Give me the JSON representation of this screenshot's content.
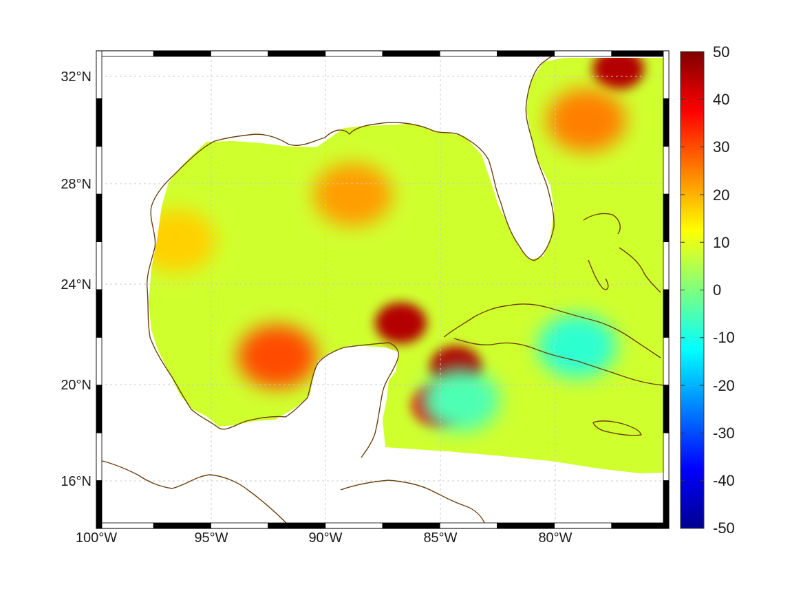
{
  "map": {
    "x_ticks": [
      "100°W",
      "95°W",
      "90°W",
      "85°W",
      "80°W"
    ],
    "y_ticks": [
      "32°N",
      "28°N",
      "24°N",
      "20°N",
      "16°N"
    ],
    "lon_range": [
      -100,
      -75
    ],
    "lat_range": [
      14.3,
      32.9
    ],
    "grid": true,
    "region_frame": "black-white alternating border",
    "colors": {
      "coastline": "#6b3f0e",
      "land": "#ffffff"
    }
  },
  "colorbar": {
    "ticks": [
      "50",
      "40",
      "30",
      "20",
      "10",
      "0",
      "-10",
      "-20",
      "-30",
      "-40",
      "-50"
    ],
    "range": [
      -50,
      50
    ],
    "colormap": "jet",
    "placement": "right"
  },
  "chart_data": {
    "type": "heatmap",
    "colormap": "jet",
    "vmin": -50,
    "vmax": 50,
    "features": [
      {
        "lon": -88.8,
        "lat": 27.3,
        "value": 22
      },
      {
        "lon": -96.5,
        "lat": 25.5,
        "value": 17
      },
      {
        "lon": -92.1,
        "lat": 21.0,
        "value": 30
      },
      {
        "lon": -86.7,
        "lat": 22.3,
        "value": 45
      },
      {
        "lon": -84.3,
        "lat": 20.6,
        "value": 45
      },
      {
        "lon": -85.1,
        "lat": 19.1,
        "value": 38
      },
      {
        "lon": -77.2,
        "lat": 32.2,
        "value": 45
      },
      {
        "lon": -78.6,
        "lat": 30.2,
        "value": 25
      },
      {
        "lon": -84.1,
        "lat": 19.3,
        "value": -5
      },
      {
        "lon": -79.0,
        "lat": 21.4,
        "value": -8
      }
    ]
  }
}
